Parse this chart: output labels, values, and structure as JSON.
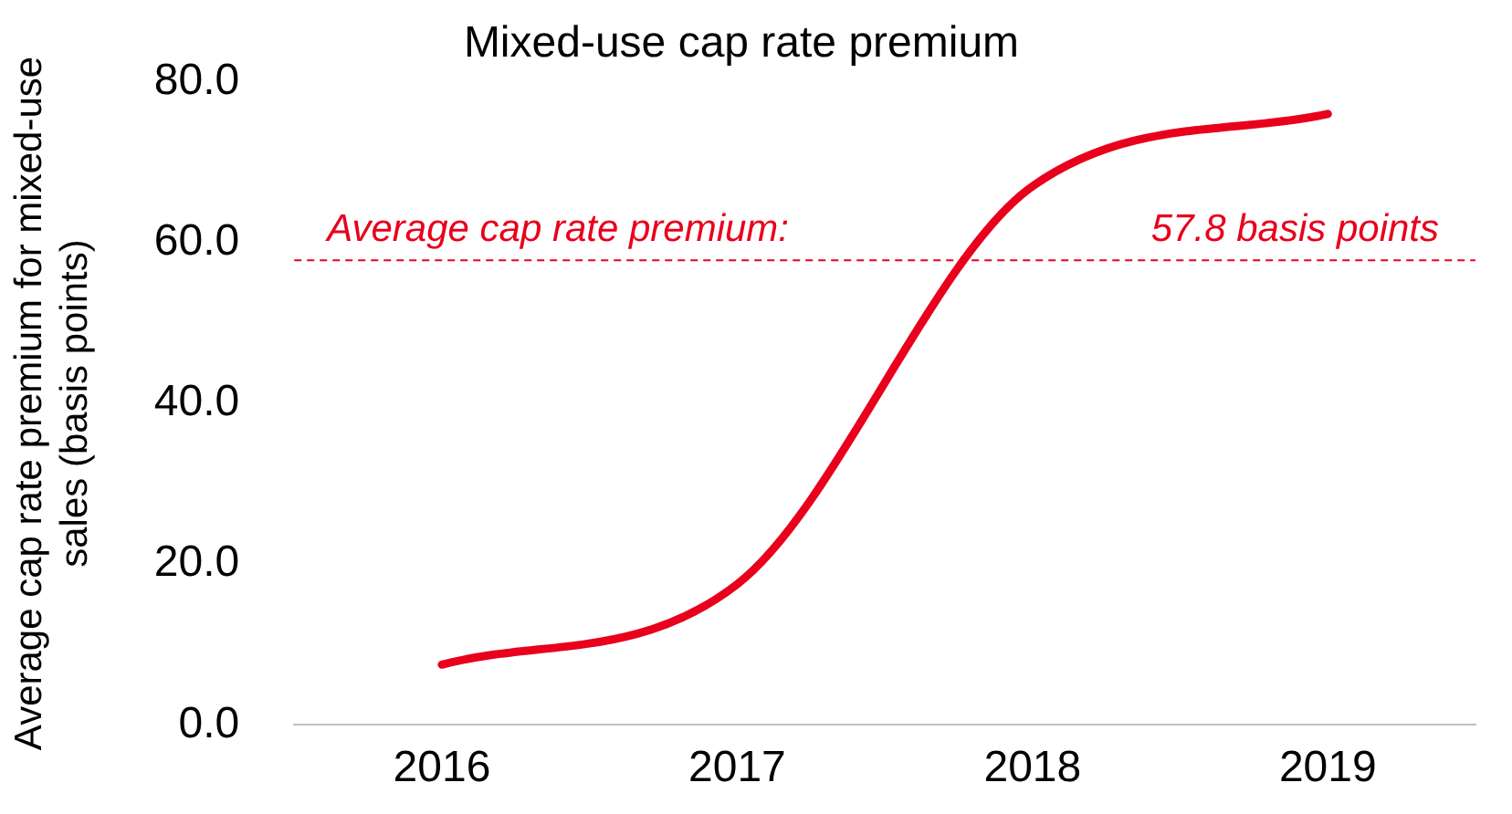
{
  "chart_data": {
    "type": "line",
    "title": "Mixed-use cap rate premium",
    "ylabel": "Average cap rate premium for mixed-use sales (basis points)",
    "categories": [
      "2016",
      "2017",
      "2018",
      "2019"
    ],
    "series": [
      {
        "color": "#e8001c",
        "values": [
          7.5,
          17.5,
          67,
          76
        ]
      }
    ],
    "ylim": [
      0,
      80
    ],
    "yticks": [
      {
        "value": 0,
        "label": "0.0"
      },
      {
        "value": 20,
        "label": "20.0"
      },
      {
        "value": 40,
        "label": "40.0"
      },
      {
        "value": 60,
        "label": "60.0"
      },
      {
        "value": 80,
        "label": "80.0"
      }
    ],
    "ref_lines": [
      {
        "axis": "y",
        "value": 57.8,
        "label": "Average cap rate premium:      57.8 basis points",
        "color": "#e8001c",
        "line_style": "dashed"
      }
    ],
    "grid": false,
    "legend": false,
    "marker": "none",
    "line_style": "solid"
  }
}
